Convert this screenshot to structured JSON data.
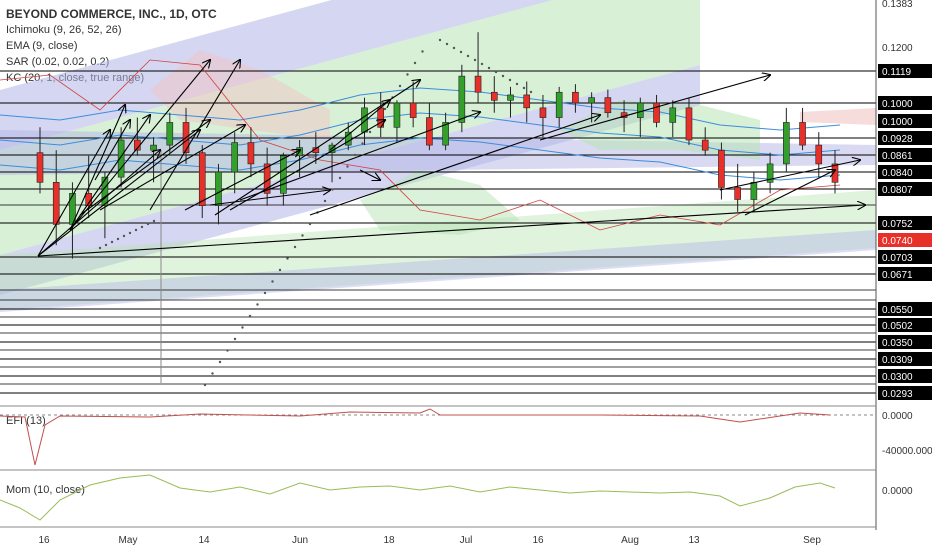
{
  "legend": {
    "title": "BEYOND COMMERCE, INC., 1D, OTC",
    "indicators": [
      "Ichimoku (9, 26, 52, 26)",
      "EMA (9, close)",
      "SAR (0.02, 0.02, 0.2)",
      "KC (20, 1, close, true range)"
    ]
  },
  "panes": {
    "efi_label": "EFI (13)",
    "mom_label": "Mom (10, close)"
  },
  "colors": {
    "up": "#33a02c",
    "down": "#e8302a",
    "band_green": "#b7e4b4",
    "band_blue": "#b3b5e6",
    "band_red": "#f2c4c4",
    "kc": "#3c8ddc",
    "efi": "#c0504d",
    "mom": "#9bbb59",
    "arrow": "#000000",
    "price_tag": "#e8302a"
  },
  "chart_data": {
    "type": "candlestick",
    "title": "BEYOND COMMERCE, INC., 1D, OTC",
    "x_tick_labels": [
      "16",
      "May",
      "14",
      "Jun",
      "18",
      "Jul",
      "16",
      "Aug",
      "13",
      "Sep"
    ],
    "y_tick_labels": [
      "0.1383",
      "0.1200",
      "0.1119",
      "0.1000",
      "0.1000",
      "0.0928",
      "0.0861",
      "0.0840",
      "0.0807",
      "0.0752",
      "0.0740",
      "0.0703",
      "0.0671",
      "0.0550",
      "0.0502",
      "0.0350",
      "0.0309",
      "0.0300",
      "0.0293"
    ],
    "last_price": "0.0740",
    "horizontal_levels": [
      0.1119,
      0.1,
      0.0928,
      0.0861,
      0.084,
      0.0807,
      0.0752,
      0.0703,
      0.0671,
      0.055,
      0.0502,
      0.035,
      0.0309,
      0.03,
      0.0293
    ],
    "candles": [
      [
        0.087,
        0.095,
        0.08,
        0.082
      ],
      [
        0.082,
        0.088,
        0.072,
        0.075
      ],
      [
        0.075,
        0.082,
        0.07,
        0.08
      ],
      [
        0.08,
        0.086,
        0.076,
        0.078
      ],
      [
        0.078,
        0.084,
        0.073,
        0.083
      ],
      [
        0.083,
        0.095,
        0.081,
        0.092
      ],
      [
        0.092,
        0.097,
        0.086,
        0.088
      ],
      [
        0.088,
        0.093,
        0.082,
        0.09
      ],
      [
        0.09,
        0.098,
        0.087,
        0.096
      ],
      [
        0.096,
        0.099,
        0.085,
        0.087
      ],
      [
        0.087,
        0.09,
        0.076,
        0.078
      ],
      [
        0.078,
        0.085,
        0.075,
        0.084
      ],
      [
        0.084,
        0.094,
        0.08,
        0.091
      ],
      [
        0.091,
        0.095,
        0.083,
        0.085
      ],
      [
        0.085,
        0.089,
        0.078,
        0.08
      ],
      [
        0.08,
        0.087,
        0.078,
        0.086
      ],
      [
        0.086,
        0.092,
        0.083,
        0.089
      ],
      [
        0.089,
        0.094,
        0.085,
        0.087
      ],
      [
        0.087,
        0.091,
        0.082,
        0.09
      ],
      [
        0.09,
        0.096,
        0.088,
        0.094
      ],
      [
        0.094,
        0.102,
        0.09,
        0.099
      ],
      [
        0.099,
        0.104,
        0.093,
        0.095
      ],
      [
        0.095,
        0.101,
        0.091,
        0.1
      ],
      [
        0.1,
        0.108,
        0.095,
        0.097
      ],
      [
        0.097,
        0.1,
        0.088,
        0.09
      ],
      [
        0.09,
        0.098,
        0.088,
        0.096
      ],
      [
        0.096,
        0.114,
        0.094,
        0.11
      ],
      [
        0.11,
        0.125,
        0.1,
        0.104
      ],
      [
        0.104,
        0.11,
        0.098,
        0.101
      ],
      [
        0.101,
        0.106,
        0.097,
        0.103
      ],
      [
        0.103,
        0.108,
        0.096,
        0.099
      ],
      [
        0.099,
        0.103,
        0.093,
        0.097
      ],
      [
        0.097,
        0.106,
        0.095,
        0.104
      ],
      [
        0.104,
        0.107,
        0.098,
        0.1
      ],
      [
        0.1,
        0.104,
        0.096,
        0.102
      ],
      [
        0.102,
        0.105,
        0.097,
        0.098
      ],
      [
        0.098,
        0.101,
        0.094,
        0.097
      ],
      [
        0.097,
        0.102,
        0.093,
        0.1
      ],
      [
        0.1,
        0.103,
        0.095,
        0.096
      ],
      [
        0.096,
        0.101,
        0.093,
        0.099
      ],
      [
        0.099,
        0.102,
        0.09,
        0.092
      ],
      [
        0.092,
        0.095,
        0.086,
        0.088
      ],
      [
        0.088,
        0.091,
        0.079,
        0.081
      ],
      [
        0.081,
        0.085,
        0.077,
        0.079
      ],
      [
        0.079,
        0.084,
        0.077,
        0.082
      ],
      [
        0.082,
        0.087,
        0.08,
        0.085
      ],
      [
        0.085,
        0.099,
        0.084,
        0.096
      ],
      [
        0.096,
        0.099,
        0.088,
        0.09
      ],
      [
        0.09,
        0.094,
        0.083,
        0.085
      ],
      [
        0.085,
        0.088,
        0.08,
        0.082
      ]
    ],
    "efi_ticks": [
      "0.0000",
      "-40000.0000"
    ],
    "mom_ticks": [
      "0.0000"
    ]
  }
}
